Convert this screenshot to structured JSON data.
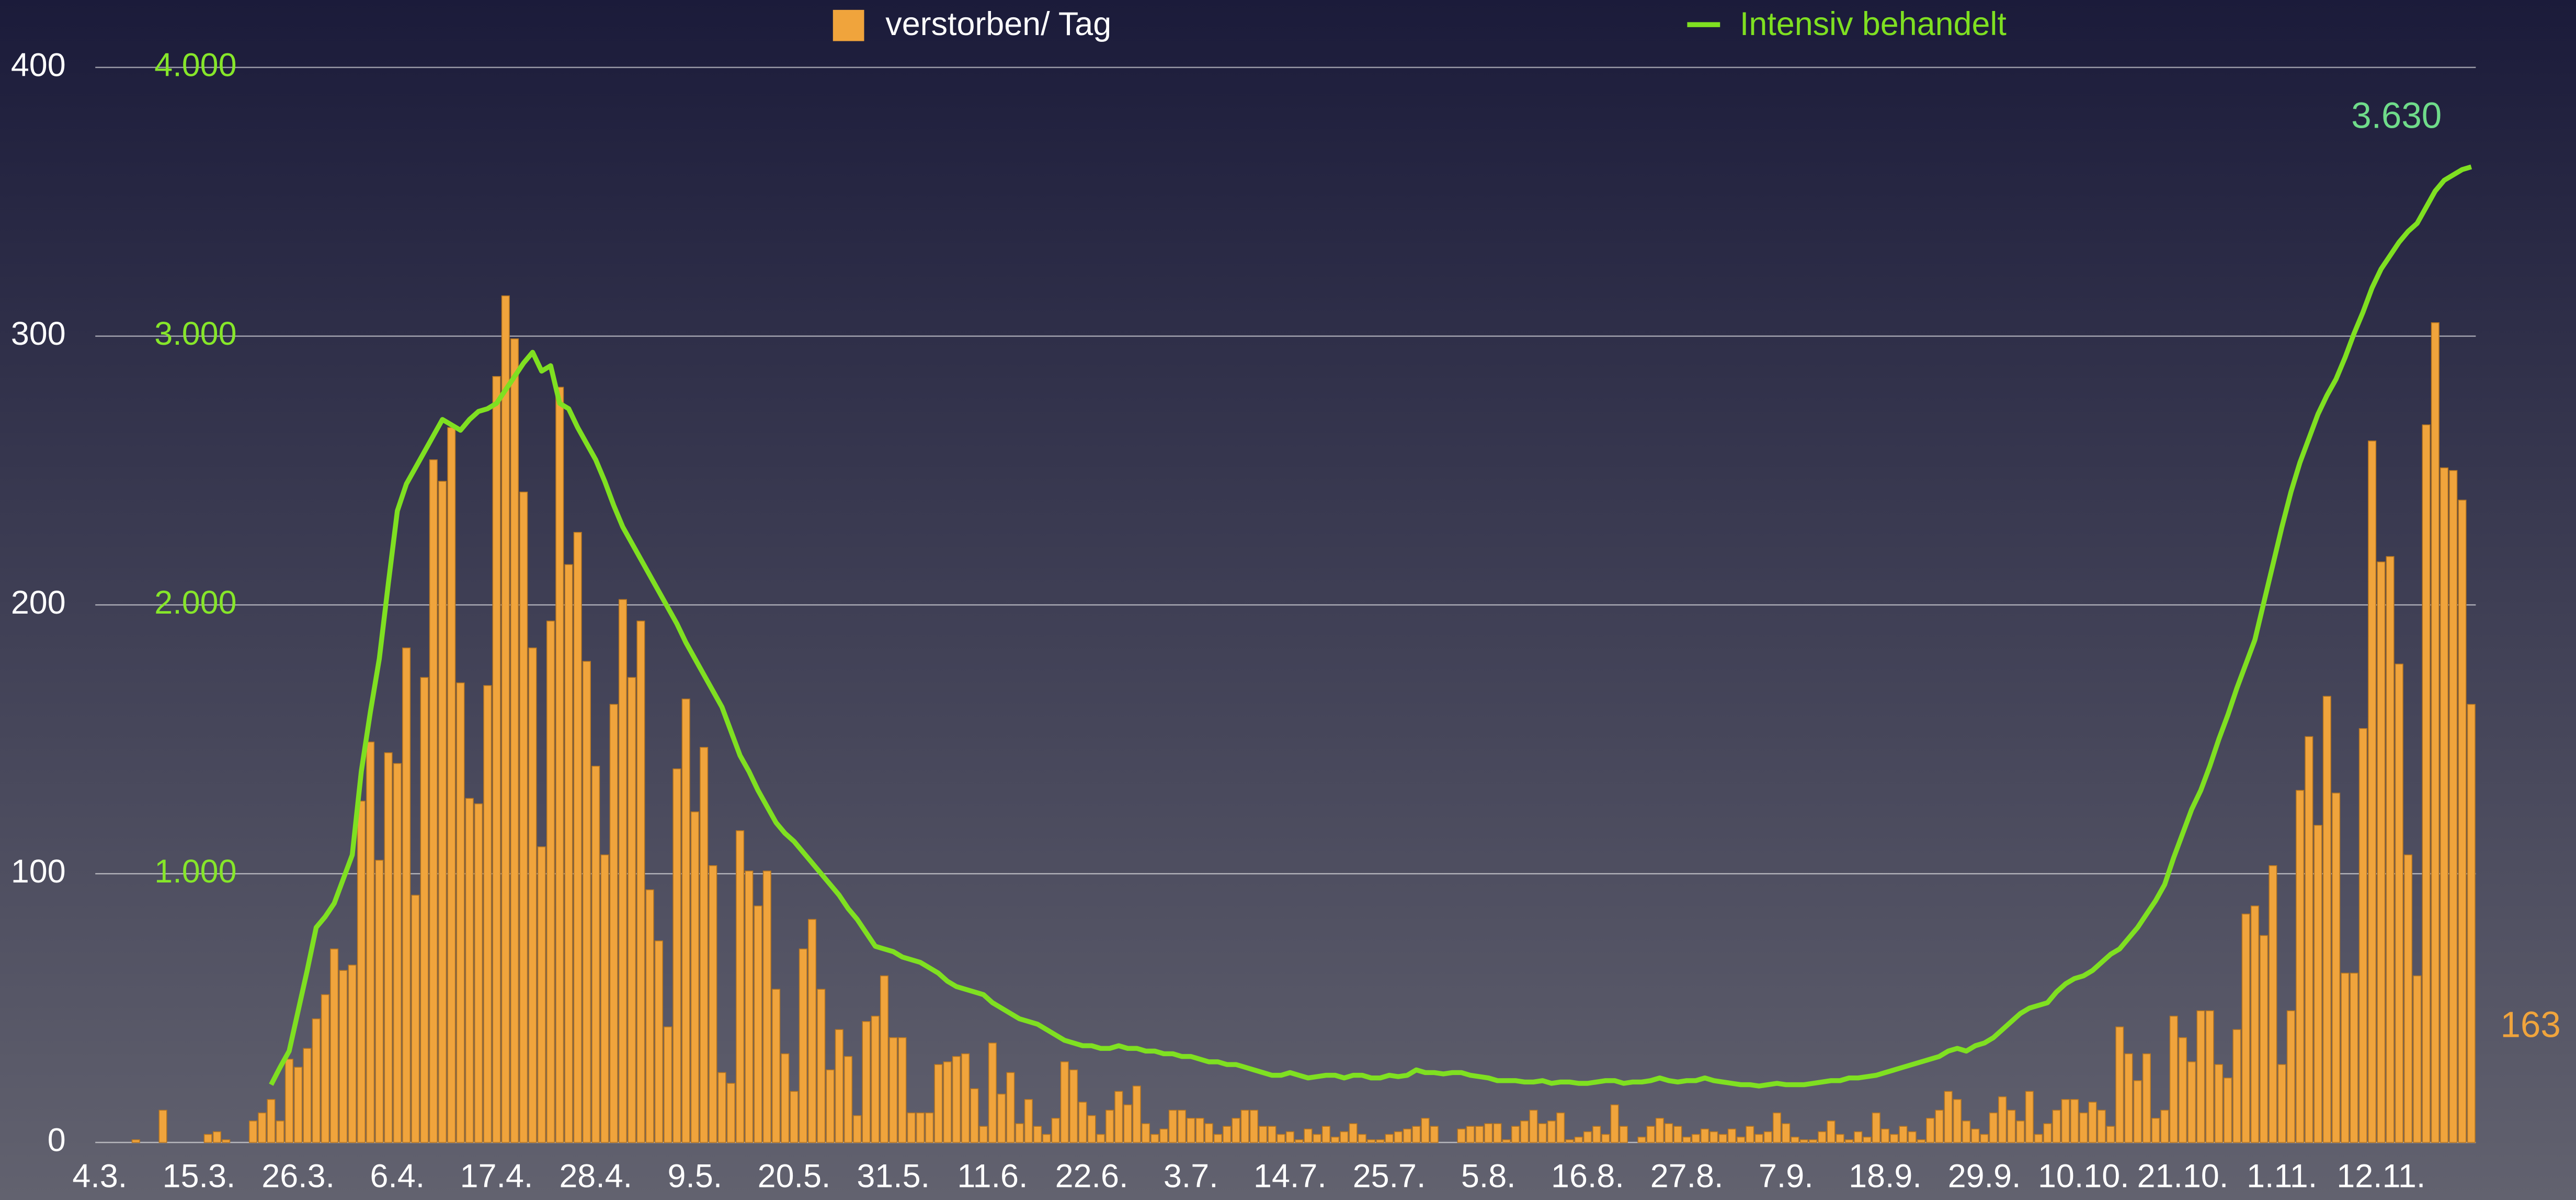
{
  "chart_data": {
    "type": "bar_line",
    "categories": [
      "4.3.",
      null,
      null,
      null,
      null,
      null,
      null,
      null,
      null,
      null,
      null,
      "15.3.",
      null,
      null,
      null,
      null,
      null,
      null,
      null,
      null,
      null,
      null,
      "26.3.",
      null,
      null,
      null,
      null,
      null,
      null,
      null,
      null,
      null,
      null,
      "6.4.",
      null,
      null,
      null,
      null,
      null,
      null,
      null,
      null,
      null,
      null,
      "17.4.",
      null,
      null,
      null,
      null,
      null,
      null,
      null,
      null,
      null,
      null,
      "28.4.",
      null,
      null,
      null,
      null,
      null,
      null,
      null,
      null,
      null,
      null,
      "9.5.",
      null,
      null,
      null,
      null,
      null,
      null,
      null,
      null,
      null,
      null,
      "20.5.",
      null,
      null,
      null,
      null,
      null,
      null,
      null,
      null,
      null,
      null,
      "31.5.",
      null,
      null,
      null,
      null,
      null,
      null,
      null,
      null,
      null,
      null,
      "11.6.",
      null,
      null,
      null,
      null,
      null,
      null,
      null,
      null,
      null,
      null,
      "22.6.",
      null,
      null,
      null,
      null,
      null,
      null,
      null,
      null,
      null,
      null,
      "3.7.",
      null,
      null,
      null,
      null,
      null,
      null,
      null,
      null,
      null,
      null,
      "14.7.",
      null,
      null,
      null,
      null,
      null,
      null,
      null,
      null,
      null,
      null,
      "25.7.",
      null,
      null,
      null,
      null,
      null,
      null,
      null,
      null,
      null,
      null,
      "5.8.",
      null,
      null,
      null,
      null,
      null,
      null,
      null,
      null,
      null,
      null,
      "16.8.",
      null,
      null,
      null,
      null,
      null,
      null,
      null,
      null,
      null,
      null,
      "27.8.",
      null,
      null,
      null,
      null,
      null,
      null,
      null,
      null,
      null,
      null,
      "7.9.",
      null,
      null,
      null,
      null,
      null,
      null,
      null,
      null,
      null,
      null,
      "18.9.",
      null,
      null,
      null,
      null,
      null,
      null,
      null,
      null,
      null,
      null,
      "29.9.",
      null,
      null,
      null,
      null,
      null,
      null,
      null,
      null,
      null,
      null,
      "10.10.",
      null,
      null,
      null,
      null,
      null,
      null,
      null,
      null,
      null,
      null,
      "21.10.",
      null,
      null,
      null,
      null,
      null,
      null,
      null,
      null,
      null,
      null,
      "1.11.",
      null,
      null,
      null,
      null,
      null,
      null,
      null,
      null,
      null,
      null,
      "12.11.",
      null,
      null,
      null,
      null,
      null,
      null,
      null,
      null,
      null,
      null
    ],
    "series": [
      {
        "name": "verstorben/ Tag",
        "color": "#f0a43c",
        "kind": "bar",
        "values": [
          0,
          0,
          0,
          0,
          1,
          0,
          0,
          12,
          0,
          0,
          0,
          0,
          3,
          4,
          1,
          0,
          0,
          8,
          11,
          16,
          8,
          31,
          28,
          35,
          46,
          55,
          72,
          64,
          66,
          127,
          149,
          105,
          145,
          141,
          184,
          92,
          173,
          254,
          246,
          266,
          171,
          128,
          126,
          170,
          285,
          315,
          299,
          242,
          184,
          110,
          194,
          281,
          215,
          227,
          179,
          140,
          107,
          163,
          202,
          173,
          194,
          94,
          75,
          43,
          139,
          165,
          123,
          147,
          103,
          26,
          22,
          116,
          101,
          88,
          101,
          57,
          33,
          19,
          72,
          83,
          57,
          27,
          42,
          32,
          10,
          45,
          47,
          62,
          39,
          39,
          11,
          11,
          11,
          29,
          30,
          32,
          33,
          20,
          6,
          37,
          18,
          26,
          7,
          16,
          6,
          3,
          9,
          30,
          27,
          15,
          10,
          3,
          12,
          19,
          14,
          21,
          7,
          3,
          5,
          12,
          12,
          9,
          9,
          7,
          3,
          6,
          9,
          12,
          12,
          6,
          6,
          3,
          4,
          1,
          5,
          3,
          6,
          2,
          4,
          7,
          3,
          1,
          1,
          3,
          4,
          5,
          6,
          9,
          6,
          0,
          0,
          5,
          6,
          6,
          7,
          7,
          1,
          6,
          8,
          12,
          7,
          8,
          11,
          1,
          2,
          4,
          6,
          3,
          14,
          6,
          0,
          2,
          6,
          9,
          7,
          6,
          2,
          3,
          5,
          4,
          3,
          5,
          2,
          6,
          3,
          4,
          11,
          7,
          2,
          1,
          1,
          4,
          8,
          3,
          1,
          4,
          2,
          11,
          5,
          3,
          6,
          4,
          1,
          9,
          12,
          19,
          16,
          8,
          5,
          3,
          11,
          17,
          12,
          8,
          19,
          3,
          7,
          12,
          16,
          16,
          11,
          15,
          12,
          6,
          43,
          33,
          23,
          33,
          9,
          12,
          47,
          39,
          30,
          49,
          49,
          29,
          24,
          42,
          85,
          88,
          77,
          103,
          29,
          49,
          131,
          151,
          118,
          166,
          130,
          63,
          63,
          154,
          261,
          216,
          218,
          178,
          107,
          62,
          267,
          305,
          251,
          250,
          239,
          163
        ]
      },
      {
        "name": "Intensiv behandelt",
        "color": "#7fe021",
        "kind": "line",
        "axis": "y2",
        "values": [
          null,
          null,
          null,
          null,
          null,
          null,
          null,
          null,
          null,
          null,
          null,
          null,
          null,
          null,
          null,
          null,
          null,
          null,
          null,
          215,
          280,
          340,
          490,
          640,
          800,
          840,
          890,
          980,
          1070,
          1380,
          1600,
          1800,
          2080,
          2350,
          2450,
          2510,
          2570,
          2630,
          2690,
          2670,
          2650,
          2690,
          2720,
          2730,
          2750,
          2800,
          2850,
          2900,
          2940,
          2870,
          2890,
          2750,
          2730,
          2660,
          2600,
          2540,
          2460,
          2370,
          2290,
          2230,
          2170,
          2110,
          2050,
          1990,
          1930,
          1860,
          1800,
          1740,
          1680,
          1620,
          1530,
          1440,
          1380,
          1310,
          1250,
          1190,
          1150,
          1120,
          1080,
          1040,
          1000,
          960,
          920,
          870,
          830,
          780,
          730,
          720,
          710,
          690,
          680,
          670,
          650,
          630,
          600,
          580,
          570,
          560,
          550,
          520,
          500,
          480,
          460,
          450,
          440,
          420,
          400,
          380,
          370,
          360,
          360,
          350,
          350,
          360,
          350,
          350,
          340,
          340,
          330,
          330,
          320,
          320,
          310,
          300,
          300,
          290,
          290,
          280,
          270,
          260,
          250,
          250,
          260,
          250,
          240,
          245,
          250,
          250,
          240,
          250,
          250,
          240,
          240,
          250,
          245,
          250,
          270,
          260,
          260,
          255,
          260,
          260,
          250,
          245,
          240,
          230,
          230,
          230,
          225,
          225,
          230,
          220,
          225,
          225,
          220,
          220,
          225,
          230,
          230,
          220,
          225,
          225,
          230,
          240,
          230,
          225,
          230,
          230,
          240,
          230,
          225,
          220,
          215,
          215,
          210,
          215,
          220,
          215,
          215,
          215,
          220,
          225,
          230,
          230,
          240,
          240,
          245,
          250,
          260,
          270,
          280,
          290,
          300,
          310,
          320,
          340,
          350,
          340,
          360,
          370,
          390,
          420,
          450,
          480,
          500,
          510,
          520,
          560,
          590,
          610,
          620,
          640,
          670,
          700,
          720,
          760,
          800,
          850,
          900,
          960,
          1060,
          1150,
          1240,
          1310,
          1400,
          1500,
          1590,
          1690,
          1780,
          1870,
          2010,
          2150,
          2290,
          2420,
          2530,
          2620,
          2710,
          2780,
          2840,
          2920,
          3010,
          3090,
          3180,
          3250,
          3300,
          3350,
          3390,
          3420,
          3480,
          3540,
          3580,
          3600,
          3620,
          3630
        ],
        "value_labels": [
          null,
          null,
          null,
          null,
          null,
          null,
          null,
          null,
          null,
          null,
          null,
          null,
          null,
          null,
          null,
          null,
          null,
          null,
          null,
          null,
          null,
          null,
          null,
          null,
          null,
          null,
          null,
          null,
          null,
          null,
          null,
          null,
          null,
          null,
          null,
          null,
          null,
          null,
          null,
          null,
          null,
          null,
          null,
          null,
          null,
          null,
          null,
          null,
          null,
          null,
          null,
          null,
          null,
          null,
          null,
          null,
          null,
          null,
          null,
          null,
          null,
          null,
          null,
          null,
          null,
          null,
          null,
          null,
          null,
          null,
          null,
          null,
          null,
          null,
          null,
          null,
          null,
          null,
          null,
          null,
          null,
          null,
          null,
          null,
          null,
          null,
          null,
          null,
          null,
          null,
          null,
          null,
          null,
          null,
          null,
          null,
          null,
          null,
          null,
          null,
          null,
          null,
          null,
          null,
          null,
          null,
          null,
          null,
          null,
          null,
          null,
          null,
          null,
          null,
          null,
          null,
          null,
          null,
          null,
          null,
          null,
          null,
          null,
          null,
          null,
          null,
          null,
          null,
          null,
          null,
          null,
          null,
          null,
          null,
          null,
          null,
          null,
          null,
          null,
          null,
          null,
          null,
          null,
          null,
          null,
          null,
          null,
          null,
          null,
          null,
          null,
          null,
          null,
          null,
          null,
          null,
          null,
          null,
          null,
          null,
          null,
          null,
          null,
          null,
          null,
          null,
          null,
          null,
          null,
          null,
          null,
          null,
          null,
          null,
          null,
          null,
          null,
          null,
          null,
          null,
          null,
          null,
          null,
          null,
          null,
          null,
          null,
          null,
          null,
          null,
          null,
          null,
          null,
          null,
          null,
          null,
          null,
          null,
          null,
          null,
          null,
          null,
          null,
          null,
          null,
          null,
          null,
          null,
          null,
          null,
          null,
          null,
          null,
          null,
          null,
          null,
          null,
          null,
          null,
          null,
          null,
          null,
          null,
          null,
          null,
          null,
          null,
          null,
          null,
          null,
          null,
          null,
          null,
          null,
          null,
          null,
          null,
          null,
          null,
          null,
          null,
          null,
          null,
          null,
          null,
          null,
          null,
          null,
          null,
          null,
          null,
          null,
          null,
          null,
          null,
          null,
          null,
          null,
          null,
          null,
          null,
          null,
          null,
          "3.630"
        ]
      }
    ],
    "ylim": [
      0,
      400
    ],
    "yticks": [
      0,
      100,
      200,
      300,
      400
    ],
    "y2lim": [
      0,
      4000
    ],
    "y2ticks": [
      {
        "value": 1000,
        "label": "1.000"
      },
      {
        "value": 2000,
        "label": "2.000"
      },
      {
        "value": 3000,
        "label": "3.000"
      },
      {
        "value": 4000,
        "label": "4.000"
      }
    ],
    "grid": true,
    "legend": "top"
  }
}
